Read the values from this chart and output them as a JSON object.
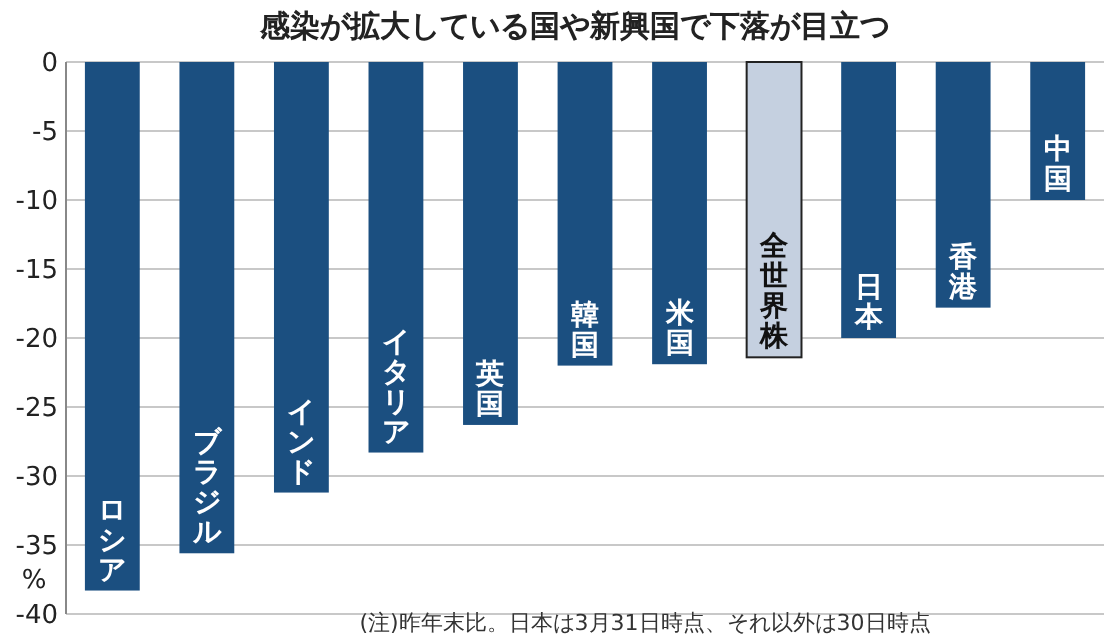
{
  "chart_data": {
    "type": "bar",
    "title": "感染が拡大している国や新興国で下落が目立つ",
    "categories": [
      "ロシア",
      "ブラジル",
      "インド",
      "イタリア",
      "英国",
      "韓国",
      "米国",
      "全世界株",
      "日本",
      "香港",
      "中国"
    ],
    "values": [
      -38.3,
      -35.6,
      -31.2,
      -28.3,
      -26.3,
      -22.0,
      -21.9,
      -21.4,
      -20.0,
      -17.8,
      -10.0
    ],
    "colors": [
      "#1b4f80",
      "#1b4f80",
      "#1b4f80",
      "#1b4f80",
      "#1b4f80",
      "#1b4f80",
      "#1b4f80",
      "#c5d0e0",
      "#1b4f80",
      "#1b4f80",
      "#1b4f80"
    ],
    "ylabel": "%",
    "ylim": [
      -40,
      0
    ],
    "yticks": [
      0,
      -5,
      -10,
      -15,
      -20,
      -25,
      -30,
      -35,
      -40
    ],
    "grid": "y",
    "annotations": [
      "(注)昨年末比。日本は3月31日時点、それ以外は30日時点"
    ]
  }
}
